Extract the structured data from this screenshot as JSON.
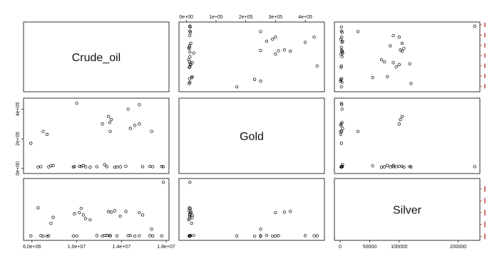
{
  "chart_data": {
    "type": "scatter",
    "title": "",
    "variables": [
      "Crude_oil",
      "Gold",
      "Silver"
    ],
    "ticks": {
      "Crude_oil": [
        "6.0e+06",
        "1.0e+07",
        "1.4e+07",
        "1.8e+07"
      ],
      "Gold": [
        "0e+00",
        "1e+05",
        "2e+05",
        "3e+05",
        "4e+05"
      ],
      "Gold_left": [
        "0e+00",
        "2e+05",
        "4e+05"
      ],
      "Silver": [
        "0",
        "50000",
        "100000",
        "200000"
      ]
    },
    "ranges": {
      "Crude_oil": [
        5500000,
        18000000
      ],
      "Gold": [
        -15000,
        455000
      ],
      "Silver": [
        -5000,
        232000
      ]
    },
    "points": [
      {
        "Crude_oil": 5900000,
        "Gold": 170000,
        "Silver": 2000
      },
      {
        "Crude_oil": 6550000,
        "Gold": 10000,
        "Silver": 120000
      },
      {
        "Crude_oil": 6800000,
        "Gold": 12000,
        "Silver": 3000
      },
      {
        "Crude_oil": 7000000,
        "Gold": 250000,
        "Silver": 500
      },
      {
        "Crude_oil": 7350000,
        "Gold": 230000,
        "Silver": 1000
      },
      {
        "Crude_oil": 7500000,
        "Gold": 11000,
        "Silver": 2500
      },
      {
        "Crude_oil": 7700000,
        "Gold": 18000,
        "Silver": 55000
      },
      {
        "Crude_oil": 7900000,
        "Gold": 20000,
        "Silver": 80000
      },
      {
        "Crude_oil": 9700000,
        "Gold": 10000,
        "Silver": 1500
      },
      {
        "Crude_oil": 9800000,
        "Gold": 12000,
        "Silver": 95000
      },
      {
        "Crude_oil": 10000000,
        "Gold": 440000,
        "Silver": 2000
      },
      {
        "Crude_oil": 10250000,
        "Gold": 15000,
        "Silver": 100000
      },
      {
        "Crude_oil": 10400000,
        "Gold": 13000,
        "Silver": 118000
      },
      {
        "Crude_oil": 10600000,
        "Gold": 20000,
        "Silver": 90000
      },
      {
        "Crude_oil": 10800000,
        "Gold": 11000,
        "Silver": 75000
      },
      {
        "Crude_oil": 11200000,
        "Gold": 8000,
        "Silver": 70000
      },
      {
        "Crude_oil": 11800000,
        "Gold": 12000,
        "Silver": 3000
      },
      {
        "Crude_oil": 12300000,
        "Gold": 300000,
        "Silver": 1500
      },
      {
        "Crude_oil": 12500000,
        "Gold": 25000,
        "Silver": 4000
      },
      {
        "Crude_oil": 12700000,
        "Gold": 12000,
        "Silver": 3500
      },
      {
        "Crude_oil": 12850000,
        "Gold": 350000,
        "Silver": 105000
      },
      {
        "Crude_oil": 12950000,
        "Gold": 310000,
        "Silver": 3000
      },
      {
        "Crude_oil": 13000000,
        "Gold": 250000,
        "Silver": 2500
      },
      {
        "Crude_oil": 13100000,
        "Gold": 330000,
        "Silver": 102000
      },
      {
        "Crude_oil": 13400000,
        "Gold": 9000,
        "Silver": 108000
      },
      {
        "Crude_oil": 13600000,
        "Gold": 10000,
        "Silver": 2000
      },
      {
        "Crude_oil": 13900000,
        "Gold": 11000,
        "Silver": 85000
      },
      {
        "Crude_oil": 14400000,
        "Gold": 15000,
        "Silver": 105000
      },
      {
        "Crude_oil": 14600000,
        "Gold": 400000,
        "Silver": 3000
      },
      {
        "Crude_oil": 14800000,
        "Gold": 270000,
        "Silver": 4000
      },
      {
        "Crude_oil": 15200000,
        "Gold": 290000,
        "Silver": 1000
      },
      {
        "Crude_oil": 15600000,
        "Gold": 300000,
        "Silver": 100000
      },
      {
        "Crude_oil": 15600000,
        "Gold": 430000,
        "Silver": 2500
      },
      {
        "Crude_oil": 15900000,
        "Gold": 12000,
        "Silver": 90000
      },
      {
        "Crude_oil": 16550000,
        "Gold": 14000,
        "Silver": 3000
      },
      {
        "Crude_oil": 16700000,
        "Gold": 250000,
        "Silver": 30000
      },
      {
        "Crude_oil": 16800000,
        "Gold": 12000,
        "Silver": 2000
      },
      {
        "Crude_oil": 17600000,
        "Gold": 13000,
        "Silver": 2000
      },
      {
        "Crude_oil": 17750000,
        "Gold": 12000,
        "Silver": 228000
      }
    ]
  }
}
